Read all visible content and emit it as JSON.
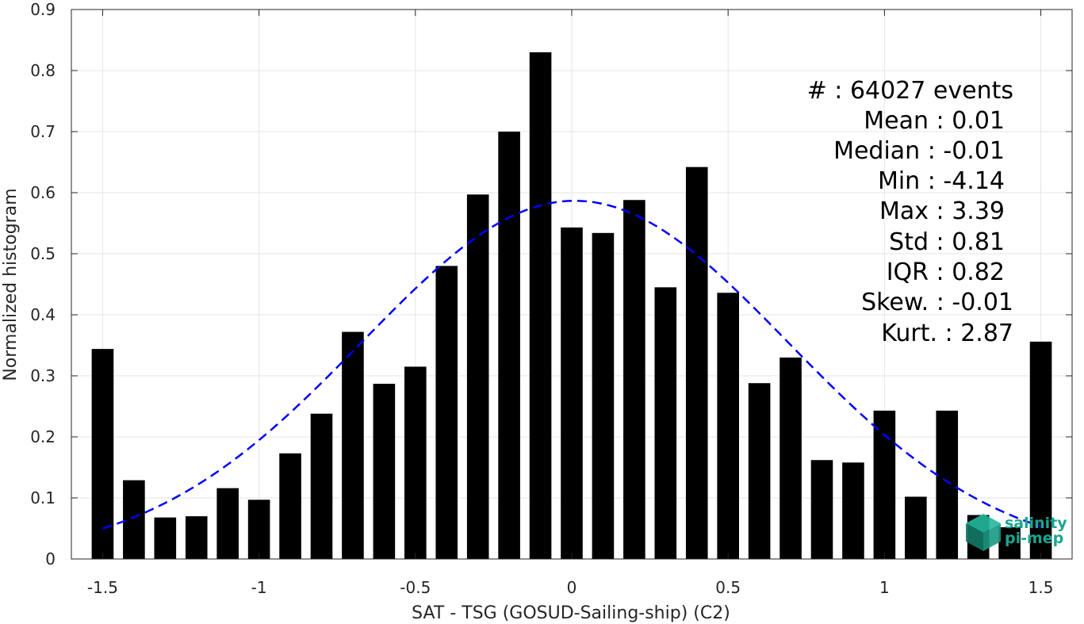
{
  "chart_data": {
    "type": "bar",
    "xlabel": "SAT - TSG (GOSUD-Sailing-ship) (C2)",
    "ylabel": "Normalized histogram",
    "xlim": [
      -1.6,
      1.6
    ],
    "ylim": [
      0,
      0.9
    ],
    "grid": true,
    "x_ticks": [
      -1.5,
      -1,
      -0.5,
      0,
      0.5,
      1,
      1.5
    ],
    "x_tick_labels": [
      "-1.5",
      "-1",
      "-0.5",
      "0",
      "0.5",
      "1",
      "1.5"
    ],
    "y_ticks": [
      0,
      0.1,
      0.2,
      0.3,
      0.4,
      0.5,
      0.6,
      0.7,
      0.8,
      0.9
    ],
    "y_tick_labels": [
      "0",
      "0.1",
      "0.2",
      "0.3",
      "0.4",
      "0.5",
      "0.6",
      "0.7",
      "0.8",
      "0.9"
    ],
    "bar_width": 0.07,
    "bars": {
      "x": [
        -1.5,
        -1.4,
        -1.3,
        -1.2,
        -1.1,
        -1.0,
        -0.9,
        -0.8,
        -0.7,
        -0.6,
        -0.5,
        -0.4,
        -0.3,
        -0.2,
        -0.1,
        0.0,
        0.1,
        0.2,
        0.3,
        0.4,
        0.5,
        0.6,
        0.7,
        0.8,
        0.9,
        1.0,
        1.1,
        1.2,
        1.3,
        1.4,
        1.5
      ],
      "values": [
        0.344,
        0.129,
        0.068,
        0.07,
        0.116,
        0.097,
        0.173,
        0.238,
        0.372,
        0.287,
        0.315,
        0.48,
        0.597,
        0.7,
        0.83,
        0.543,
        0.534,
        0.588,
        0.445,
        0.642,
        0.436,
        0.288,
        0.33,
        0.162,
        0.158,
        0.243,
        0.102,
        0.243,
        0.072,
        0.052,
        0.356
      ],
      "color": "#000000"
    },
    "fit_curve": {
      "style": "dashed",
      "color": "#0000ff",
      "mean": 0.01,
      "std": 0.68,
      "x_range": [
        -1.5,
        1.5
      ]
    },
    "stats": [
      {
        "label": "#  : 64027 events"
      },
      {
        "label": "Mean : 0.01"
      },
      {
        "label": "Median : -0.01"
      },
      {
        "label": "Min : -4.14"
      },
      {
        "label": "Max : 3.39"
      },
      {
        "label": "Std : 0.81"
      },
      {
        "label": "IQR : 0.82"
      },
      {
        "label": "Skew. : -0.01"
      },
      {
        "label": "Kurt. : 2.87"
      }
    ]
  },
  "logo": {
    "line1": "salinity",
    "line2": "pi-mep",
    "color": "#1aa68f"
  }
}
